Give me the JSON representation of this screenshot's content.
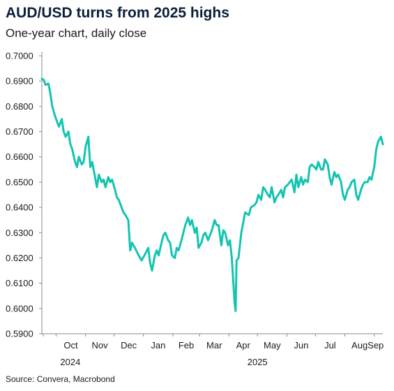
{
  "header": {
    "title": "AUD/USD turns from 2025 highs",
    "subtitle": "One-year chart, daily close"
  },
  "footer": {
    "source": "Source: Convera, Macrobond"
  },
  "colors": {
    "line": "#13c4b0",
    "axis": "#8a8a8a",
    "title": "#0b1f3a"
  },
  "chart_data": {
    "type": "line",
    "title": "AUD/USD turns from 2025 highs",
    "subtitle": "One-year chart, daily close",
    "xlabel": "",
    "ylabel": "",
    "ylim": [
      0.59,
      0.7
    ],
    "xlim": [
      "2024-09-16",
      "2025-09-10"
    ],
    "grid": false,
    "legend": "none",
    "y_ticks": [
      "0.5900",
      "0.6000",
      "0.6100",
      "0.6200",
      "0.6300",
      "0.6400",
      "0.6500",
      "0.6600",
      "0.6700",
      "0.6800",
      "0.6900",
      "0.7000"
    ],
    "x_ticks": [
      {
        "label": "Oct",
        "date": "2024-10-01"
      },
      {
        "label": "Nov",
        "date": "2024-11-01"
      },
      {
        "label": "Dec",
        "date": "2024-12-01"
      },
      {
        "label": "Jan",
        "date": "2025-01-01"
      },
      {
        "label": "Feb",
        "date": "2025-02-01"
      },
      {
        "label": "Mar",
        "date": "2025-03-01"
      },
      {
        "label": "Apr",
        "date": "2025-04-01"
      },
      {
        "label": "May",
        "date": "2025-05-01"
      },
      {
        "label": "Jun",
        "date": "2025-06-01"
      },
      {
        "label": "Jul",
        "date": "2025-07-01"
      },
      {
        "label": "Aug",
        "date": "2025-08-01"
      },
      {
        "label": "Sep",
        "date": "2025-09-01"
      }
    ],
    "year_labels": [
      {
        "label": "2024",
        "date": "2024-10-16"
      },
      {
        "label": "2025",
        "date": "2025-05-01"
      }
    ],
    "series": [
      {
        "name": "",
        "x": [
          "2024-09-16",
          "2024-09-18",
          "2024-09-20",
          "2024-09-23",
          "2024-09-25",
          "2024-09-27",
          "2024-09-30",
          "2024-10-02",
          "2024-10-04",
          "2024-10-07",
          "2024-10-09",
          "2024-10-11",
          "2024-10-14",
          "2024-10-16",
          "2024-10-18",
          "2024-10-21",
          "2024-10-23",
          "2024-10-25",
          "2024-10-28",
          "2024-10-30",
          "2024-11-01",
          "2024-11-04",
          "2024-11-06",
          "2024-11-08",
          "2024-11-11",
          "2024-11-13",
          "2024-11-15",
          "2024-11-18",
          "2024-11-20",
          "2024-11-22",
          "2024-11-25",
          "2024-11-27",
          "2024-11-29",
          "2024-12-02",
          "2024-12-04",
          "2024-12-06",
          "2024-12-09",
          "2024-12-11",
          "2024-12-13",
          "2024-12-16",
          "2024-12-18",
          "2024-12-20",
          "2024-12-23",
          "2024-12-27",
          "2024-12-30",
          "2025-01-02",
          "2025-01-06",
          "2025-01-08",
          "2025-01-10",
          "2025-01-13",
          "2025-01-15",
          "2025-01-17",
          "2025-01-20",
          "2025-01-22",
          "2025-01-24",
          "2025-01-27",
          "2025-01-29",
          "2025-01-31",
          "2025-02-03",
          "2025-02-05",
          "2025-02-07",
          "2025-02-10",
          "2025-02-12",
          "2025-02-14",
          "2025-02-17",
          "2025-02-19",
          "2025-02-21",
          "2025-02-24",
          "2025-02-26",
          "2025-02-28",
          "2025-03-03",
          "2025-03-05",
          "2025-03-07",
          "2025-03-10",
          "2025-03-12",
          "2025-03-14",
          "2025-03-17",
          "2025-03-19",
          "2025-03-21",
          "2025-03-24",
          "2025-03-26",
          "2025-03-28",
          "2025-03-31",
          "2025-04-02",
          "2025-04-04",
          "2025-04-07",
          "2025-04-08",
          "2025-04-09",
          "2025-04-11",
          "2025-04-14",
          "2025-04-16",
          "2025-04-18",
          "2025-04-22",
          "2025-04-24",
          "2025-04-28",
          "2025-04-30",
          "2025-05-02",
          "2025-05-05",
          "2025-05-07",
          "2025-05-09",
          "2025-05-12",
          "2025-05-14",
          "2025-05-16",
          "2025-05-19",
          "2025-05-21",
          "2025-05-23",
          "2025-05-26",
          "2025-05-28",
          "2025-05-30",
          "2025-06-02",
          "2025-06-04",
          "2025-06-06",
          "2025-06-09",
          "2025-06-11",
          "2025-06-13",
          "2025-06-16",
          "2025-06-18",
          "2025-06-20",
          "2025-06-23",
          "2025-06-25",
          "2025-06-27",
          "2025-06-30",
          "2025-07-02",
          "2025-07-04",
          "2025-07-07",
          "2025-07-09",
          "2025-07-11",
          "2025-07-14",
          "2025-07-16",
          "2025-07-18",
          "2025-07-21",
          "2025-07-23",
          "2025-07-25",
          "2025-07-28",
          "2025-07-30",
          "2025-08-01",
          "2025-08-04",
          "2025-08-06",
          "2025-08-08",
          "2025-08-11",
          "2025-08-13",
          "2025-08-15",
          "2025-08-18",
          "2025-08-20",
          "2025-08-22",
          "2025-08-25",
          "2025-08-27",
          "2025-08-29",
          "2025-09-01",
          "2025-09-03",
          "2025-09-05",
          "2025-09-08",
          "2025-09-10"
        ],
        "values": [
          0.691,
          0.6905,
          0.6885,
          0.689,
          0.685,
          0.68,
          0.676,
          0.674,
          0.672,
          0.675,
          0.67,
          0.668,
          0.67,
          0.665,
          0.663,
          0.658,
          0.656,
          0.66,
          0.657,
          0.658,
          0.664,
          0.668,
          0.656,
          0.658,
          0.652,
          0.648,
          0.653,
          0.65,
          0.651,
          0.648,
          0.652,
          0.65,
          0.651,
          0.647,
          0.644,
          0.643,
          0.64,
          0.638,
          0.637,
          0.635,
          0.623,
          0.626,
          0.624,
          0.621,
          0.619,
          0.621,
          0.624,
          0.618,
          0.615,
          0.621,
          0.623,
          0.621,
          0.626,
          0.629,
          0.63,
          0.627,
          0.626,
          0.621,
          0.62,
          0.624,
          0.623,
          0.627,
          0.63,
          0.633,
          0.636,
          0.633,
          0.635,
          0.63,
          0.632,
          0.624,
          0.626,
          0.629,
          0.63,
          0.627,
          0.629,
          0.631,
          0.635,
          0.633,
          0.633,
          0.625,
          0.631,
          0.63,
          0.625,
          0.627,
          0.62,
          0.602,
          0.599,
          0.619,
          0.62,
          0.63,
          0.634,
          0.638,
          0.637,
          0.64,
          0.641,
          0.642,
          0.645,
          0.643,
          0.648,
          0.647,
          0.645,
          0.644,
          0.648,
          0.642,
          0.644,
          0.645,
          0.647,
          0.644,
          0.648,
          0.649,
          0.65,
          0.651,
          0.646,
          0.653,
          0.648,
          0.652,
          0.649,
          0.651,
          0.65,
          0.656,
          0.657,
          0.656,
          0.655,
          0.658,
          0.655,
          0.655,
          0.659,
          0.657,
          0.652,
          0.649,
          0.654,
          0.652,
          0.653,
          0.65,
          0.645,
          0.643,
          0.647,
          0.648,
          0.65,
          0.651,
          0.645,
          0.643,
          0.647,
          0.649,
          0.65,
          0.65,
          0.652,
          0.651,
          0.656,
          0.663,
          0.666,
          0.668,
          0.665
        ]
      }
    ]
  }
}
